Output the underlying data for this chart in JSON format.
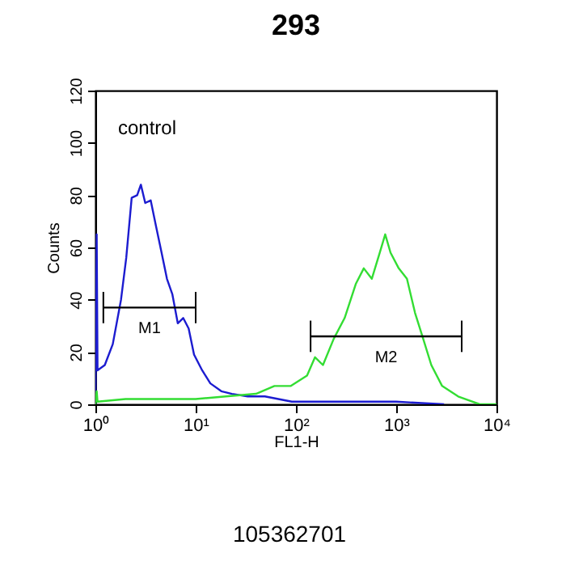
{
  "chart_data": {
    "type": "line",
    "title": "293",
    "xlabel": "FL1-H",
    "ylabel": "Counts",
    "log": "x",
    "xlim": [
      1,
      10000
    ],
    "xticks": [
      {
        "value": 1,
        "label": "10⁰"
      },
      {
        "value": 10,
        "label": "10¹"
      },
      {
        "value": 100,
        "label": "10²"
      },
      {
        "value": 1000,
        "label": "10³"
      },
      {
        "value": 10000,
        "label": "10⁴"
      }
    ],
    "ylim": [
      0,
      120
    ],
    "yticks": [
      0,
      20,
      40,
      60,
      80,
      100,
      120
    ],
    "grid": false,
    "legend": false,
    "series": [
      {
        "color": "#1c1cd0",
        "x": [
          1,
          1.03,
          1.05,
          1.24,
          1.49,
          1.8,
          2.03,
          2.3,
          2.61,
          2.84,
          3.14,
          3.56,
          4.03,
          4.57,
          5.17,
          5.86,
          6.63,
          7.51,
          8.51,
          9.63,
          11.6,
          14,
          18,
          23,
          33,
          49,
          91,
          300,
          1000,
          3000
        ],
        "values": [
          0,
          65,
          13,
          15,
          23,
          40,
          56,
          79,
          80,
          84,
          77,
          78,
          68,
          58,
          48,
          42,
          31,
          33,
          29,
          19,
          13,
          8,
          5,
          4,
          3,
          3,
          1,
          1,
          1,
          0
        ]
      },
      {
        "color": "#33dd33",
        "x": [
          1,
          1.03,
          1.05,
          2,
          5,
          10,
          20,
          40,
          61,
          89,
          129,
          155,
          186,
          238,
          306,
          395,
          475,
          571,
          686,
          777,
          878,
          1060,
          1280,
          1540,
          1860,
          2240,
          2870,
          4150,
          6800,
          10000
        ],
        "values": [
          0,
          5,
          1,
          2,
          2,
          2,
          3,
          4,
          7,
          7,
          11,
          18,
          15,
          25,
          33,
          46,
          52,
          48,
          58,
          65,
          58,
          52,
          48,
          35,
          25,
          15,
          7,
          3,
          0,
          0
        ]
      },
      {
        "name": "M1",
        "color": "#000000",
        "x": [
          1.2,
          10
        ],
        "values": [
          37,
          37
        ],
        "errors": [
          6,
          6
        ]
      },
      {
        "name": "M2",
        "color": "#000000",
        "x": [
          140,
          4500
        ],
        "values": [
          26,
          26
        ],
        "errors": [
          6,
          6
        ]
      }
    ],
    "annotations": [
      "control",
      "105362701"
    ]
  }
}
